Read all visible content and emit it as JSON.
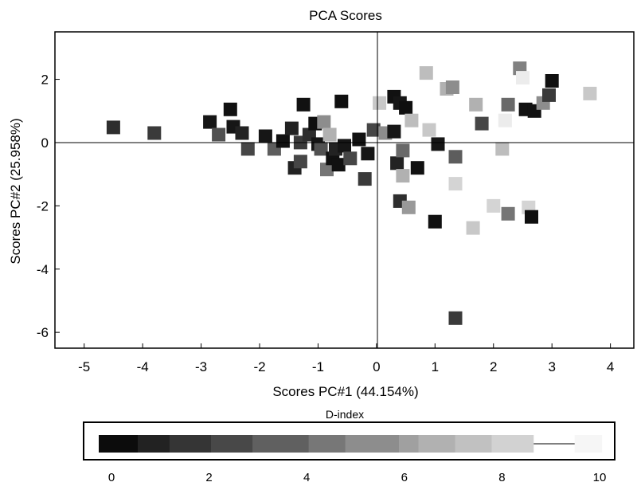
{
  "chart_data": [
    {
      "type": "scatter",
      "title": "PCA Scores",
      "xlabel": "Scores PC#1 (44.154%)",
      "ylabel": "Scores PC#2 (25.958%)",
      "xlim": [
        -5.5,
        4.4
      ],
      "ylim": [
        -6.5,
        3.5
      ],
      "xticks": [
        -5,
        -4,
        -3,
        -2,
        -1,
        0,
        1,
        2,
        3,
        4
      ],
      "yticks": [
        2,
        0,
        -2,
        -4,
        -6
      ],
      "zero_lines": true,
      "grid": false,
      "color_by": "D-index",
      "points": [
        {
          "x": -4.5,
          "y": 0.48,
          "d": 1.5
        },
        {
          "x": -3.8,
          "y": 0.3,
          "d": 2.0
        },
        {
          "x": -2.85,
          "y": 0.65,
          "d": 0.5
        },
        {
          "x": -2.7,
          "y": 0.25,
          "d": 3.0
        },
        {
          "x": -2.5,
          "y": 1.05,
          "d": 0.3
        },
        {
          "x": -2.45,
          "y": 0.5,
          "d": 0.5
        },
        {
          "x": -2.3,
          "y": 0.3,
          "d": 1.0
        },
        {
          "x": -2.2,
          "y": -0.2,
          "d": 2.5
        },
        {
          "x": -1.9,
          "y": 0.2,
          "d": 0.5
        },
        {
          "x": -1.75,
          "y": -0.2,
          "d": 3.5
        },
        {
          "x": -1.6,
          "y": 0.05,
          "d": 0.3
        },
        {
          "x": -1.45,
          "y": 0.45,
          "d": 1.0
        },
        {
          "x": -1.4,
          "y": -0.8,
          "d": 1.0
        },
        {
          "x": -1.3,
          "y": 0.0,
          "d": 2.0
        },
        {
          "x": -1.3,
          "y": -0.6,
          "d": 2.5
        },
        {
          "x": -1.25,
          "y": 1.2,
          "d": 0.3
        },
        {
          "x": -1.15,
          "y": 0.25,
          "d": 1.5
        },
        {
          "x": -1.05,
          "y": 0.6,
          "d": 0.2
        },
        {
          "x": -1.0,
          "y": -0.05,
          "d": 0.5
        },
        {
          "x": -0.95,
          "y": -0.2,
          "d": 3.0
        },
        {
          "x": -0.9,
          "y": 0.65,
          "d": 5.5
        },
        {
          "x": -0.85,
          "y": -0.85,
          "d": 4.5
        },
        {
          "x": -0.8,
          "y": 0.25,
          "d": 7.0
        },
        {
          "x": -0.75,
          "y": -0.5,
          "d": 0.3
        },
        {
          "x": -0.7,
          "y": -0.2,
          "d": 1.0
        },
        {
          "x": -0.65,
          "y": -0.7,
          "d": 0.3
        },
        {
          "x": -0.6,
          "y": 1.3,
          "d": 0.2
        },
        {
          "x": -0.55,
          "y": -0.1,
          "d": 0.5
        },
        {
          "x": -0.45,
          "y": -0.5,
          "d": 2.5
        },
        {
          "x": -0.3,
          "y": 0.1,
          "d": 0.3
        },
        {
          "x": -0.2,
          "y": -1.15,
          "d": 2.0
        },
        {
          "x": -0.15,
          "y": -0.35,
          "d": 0.5
        },
        {
          "x": -0.05,
          "y": 0.4,
          "d": 2.5
        },
        {
          "x": 0.05,
          "y": 1.25,
          "d": 8.0
        },
        {
          "x": 0.15,
          "y": 0.3,
          "d": 5.5
        },
        {
          "x": 0.3,
          "y": 1.45,
          "d": 0.3
        },
        {
          "x": 0.3,
          "y": 0.35,
          "d": 0.5
        },
        {
          "x": 0.35,
          "y": -0.65,
          "d": 1.0
        },
        {
          "x": 0.4,
          "y": 1.25,
          "d": 0.5
        },
        {
          "x": 0.4,
          "y": -1.85,
          "d": 1.5
        },
        {
          "x": 0.45,
          "y": -0.25,
          "d": 4.0
        },
        {
          "x": 0.45,
          "y": -1.05,
          "d": 7.0
        },
        {
          "x": 0.5,
          "y": 1.1,
          "d": 0.2
        },
        {
          "x": 0.55,
          "y": -2.05,
          "d": 6.0
        },
        {
          "x": 0.6,
          "y": 0.7,
          "d": 7.5
        },
        {
          "x": 0.7,
          "y": -0.8,
          "d": 0.3
        },
        {
          "x": 0.85,
          "y": 2.2,
          "d": 7.5
        },
        {
          "x": 0.9,
          "y": 0.4,
          "d": 8.0
        },
        {
          "x": 1.0,
          "y": -2.5,
          "d": 0.3
        },
        {
          "x": 1.05,
          "y": -0.05,
          "d": 0.5
        },
        {
          "x": 1.2,
          "y": 1.7,
          "d": 7.0
        },
        {
          "x": 1.3,
          "y": 1.75,
          "d": 5.5
        },
        {
          "x": 1.35,
          "y": -1.3,
          "d": 8.5
        },
        {
          "x": 1.35,
          "y": -0.45,
          "d": 3.5
        },
        {
          "x": 1.35,
          "y": -5.55,
          "d": 2.0
        },
        {
          "x": 1.65,
          "y": -2.7,
          "d": 8.0
        },
        {
          "x": 1.7,
          "y": 1.2,
          "d": 7.0
        },
        {
          "x": 1.8,
          "y": 0.6,
          "d": 2.5
        },
        {
          "x": 2.0,
          "y": -2.0,
          "d": 8.5
        },
        {
          "x": 2.15,
          "y": -0.2,
          "d": 7.5
        },
        {
          "x": 2.2,
          "y": 0.7,
          "d": 9.5
        },
        {
          "x": 2.25,
          "y": 1.2,
          "d": 4.0
        },
        {
          "x": 2.25,
          "y": -2.25,
          "d": 4.5
        },
        {
          "x": 2.45,
          "y": 2.35,
          "d": 5.0
        },
        {
          "x": 2.5,
          "y": 2.05,
          "d": 9.5
        },
        {
          "x": 2.55,
          "y": 1.05,
          "d": 0.3
        },
        {
          "x": 2.6,
          "y": -2.05,
          "d": 8.5
        },
        {
          "x": 2.65,
          "y": -2.35,
          "d": 0.2
        },
        {
          "x": 2.7,
          "y": 1.0,
          "d": 0.3
        },
        {
          "x": 2.85,
          "y": 1.25,
          "d": 5.5
        },
        {
          "x": 2.95,
          "y": 1.5,
          "d": 2.0
        },
        {
          "x": 3.0,
          "y": 1.95,
          "d": 0.2
        },
        {
          "x": 3.65,
          "y": 1.55,
          "d": 8.0
        }
      ]
    },
    {
      "type": "colorbar",
      "title": "D-index",
      "xticks": [
        0,
        2,
        4,
        6,
        8,
        10
      ],
      "xlim": [
        0,
        10
      ],
      "segments": [
        {
          "from": 0,
          "to": 0.55,
          "d": 0.1
        },
        {
          "from": 0.8,
          "to": 1.3,
          "d": 1.0
        },
        {
          "from": 1.45,
          "to": 2.3,
          "d": 1.8
        },
        {
          "from": 2.3,
          "to": 3.1,
          "d": 2.6
        },
        {
          "from": 3.15,
          "to": 4.2,
          "d": 3.6
        },
        {
          "from": 4.3,
          "to": 4.95,
          "d": 4.6
        },
        {
          "from": 5.05,
          "to": 6.0,
          "d": 5.5
        },
        {
          "from": 6.15,
          "to": 6.55,
          "d": 6.3
        },
        {
          "from": 6.55,
          "to": 7.3,
          "d": 7.0
        },
        {
          "from": 7.3,
          "to": 8.05,
          "d": 7.7
        },
        {
          "from": 8.05,
          "to": 8.65,
          "d": 8.4
        },
        {
          "from": 9.75,
          "to": 10.05,
          "d": 9.9
        }
      ]
    }
  ]
}
